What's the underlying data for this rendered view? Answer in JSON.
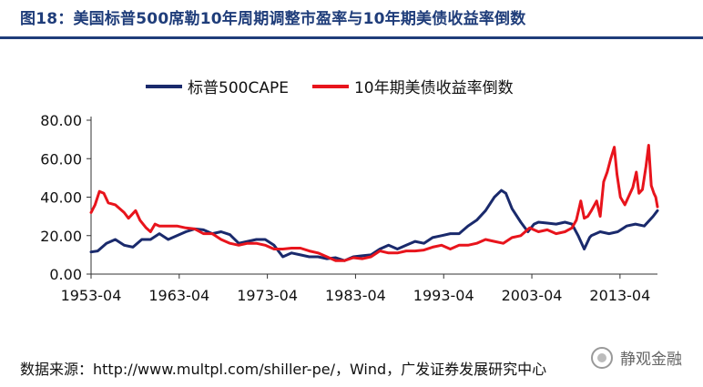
{
  "figure": {
    "title": "图18：美国标普500席勒10年周期调整市盈率与10年期美债收益率倒数",
    "source": "数据来源：http://www.multpl.com/shiller-pe/，Wind，广发证券发展研究中心",
    "watermark": "静观金融"
  },
  "colors": {
    "title": "#1f3d7a",
    "cape": "#1a2a6c",
    "inverse_yield": "#e8141c"
  },
  "chart_data": {
    "type": "line",
    "title": "",
    "xlabel": "",
    "ylabel": "",
    "xlim": [
      1953.25,
      2017.5
    ],
    "ylim": [
      0,
      80
    ],
    "y_ticks": [
      "0.00",
      "20.00",
      "40.00",
      "60.00",
      "80.00"
    ],
    "x_ticks": [
      "1953-04",
      "1963-04",
      "1973-04",
      "1983-04",
      "1993-04",
      "2003-04",
      "2013-04"
    ],
    "grid": false,
    "legend_position": "top",
    "series": [
      {
        "name": "标普500CAPE",
        "color": "#1a2a6c",
        "points": [
          [
            1953.25,
            11.5
          ],
          [
            1954,
            12
          ],
          [
            1955,
            16
          ],
          [
            1956,
            18
          ],
          [
            1957,
            15
          ],
          [
            1958,
            14
          ],
          [
            1959,
            18
          ],
          [
            1960,
            18
          ],
          [
            1961,
            21
          ],
          [
            1962,
            18
          ],
          [
            1963,
            20
          ],
          [
            1964,
            22
          ],
          [
            1965,
            23.5
          ],
          [
            1966,
            23
          ],
          [
            1967,
            21
          ],
          [
            1968,
            22
          ],
          [
            1969,
            20.5
          ],
          [
            1970,
            16
          ],
          [
            1971,
            17
          ],
          [
            1972,
            18
          ],
          [
            1973,
            18
          ],
          [
            1974,
            15
          ],
          [
            1975,
            9
          ],
          [
            1976,
            11
          ],
          [
            1977,
            10
          ],
          [
            1978,
            9
          ],
          [
            1979,
            9
          ],
          [
            1980,
            8
          ],
          [
            1981,
            8.5
          ],
          [
            1982,
            7
          ],
          [
            1983,
            9
          ],
          [
            1984,
            9.5
          ],
          [
            1985,
            10
          ],
          [
            1986,
            13
          ],
          [
            1987,
            15
          ],
          [
            1988,
            13
          ],
          [
            1989,
            15
          ],
          [
            1990,
            17
          ],
          [
            1991,
            16
          ],
          [
            1992,
            19
          ],
          [
            1993,
            20
          ],
          [
            1994,
            21
          ],
          [
            1995,
            21
          ],
          [
            1996,
            25
          ],
          [
            1997,
            28
          ],
          [
            1998,
            33
          ],
          [
            1999,
            40
          ],
          [
            1999.8,
            43.5
          ],
          [
            2000.3,
            42
          ],
          [
            2001,
            34
          ],
          [
            2002,
            27
          ],
          [
            2002.8,
            22
          ],
          [
            2003.5,
            26
          ],
          [
            2004,
            27
          ],
          [
            2005,
            26.5
          ],
          [
            2006,
            26
          ],
          [
            2007,
            27
          ],
          [
            2007.8,
            26
          ],
          [
            2008.5,
            20
          ],
          [
            2009.2,
            13
          ],
          [
            2009.8,
            19
          ],
          [
            2010,
            20
          ],
          [
            2011,
            22
          ],
          [
            2012,
            21
          ],
          [
            2013,
            22
          ],
          [
            2014,
            25
          ],
          [
            2015,
            26
          ],
          [
            2016,
            25
          ],
          [
            2017,
            30
          ],
          [
            2017.5,
            33
          ]
        ]
      },
      {
        "name": "10年期美债收益率倒数",
        "color": "#e8141c",
        "points": [
          [
            1953.25,
            32
          ],
          [
            1953.7,
            36
          ],
          [
            1954.2,
            43
          ],
          [
            1954.7,
            42
          ],
          [
            1955.2,
            37
          ],
          [
            1956,
            36
          ],
          [
            1957,
            32
          ],
          [
            1957.5,
            29
          ],
          [
            1958.3,
            33
          ],
          [
            1958.8,
            28
          ],
          [
            1959.5,
            24
          ],
          [
            1960,
            22
          ],
          [
            1960.5,
            26
          ],
          [
            1961,
            25
          ],
          [
            1962,
            25
          ],
          [
            1963,
            25
          ],
          [
            1964,
            24
          ],
          [
            1965,
            23.5
          ],
          [
            1966,
            21
          ],
          [
            1967,
            21
          ],
          [
            1968,
            18
          ],
          [
            1969,
            16
          ],
          [
            1970,
            15
          ],
          [
            1971,
            16
          ],
          [
            1972,
            16
          ],
          [
            1973,
            15
          ],
          [
            1974,
            13
          ],
          [
            1975,
            13
          ],
          [
            1976,
            13.5
          ],
          [
            1977,
            13.5
          ],
          [
            1978,
            12
          ],
          [
            1979,
            11
          ],
          [
            1980,
            9
          ],
          [
            1981,
            7
          ],
          [
            1982,
            7
          ],
          [
            1983,
            8.5
          ],
          [
            1984,
            8
          ],
          [
            1985,
            9
          ],
          [
            1986,
            12
          ],
          [
            1987,
            11
          ],
          [
            1988,
            11
          ],
          [
            1989,
            12
          ],
          [
            1990,
            12
          ],
          [
            1991,
            12.5
          ],
          [
            1992,
            14
          ],
          [
            1993,
            15
          ],
          [
            1994,
            13
          ],
          [
            1995,
            15
          ],
          [
            1996,
            15
          ],
          [
            1997,
            16
          ],
          [
            1998,
            18
          ],
          [
            1999,
            17
          ],
          [
            2000,
            16
          ],
          [
            2001,
            19
          ],
          [
            2002,
            20
          ],
          [
            2003,
            24
          ],
          [
            2004,
            22
          ],
          [
            2005,
            23
          ],
          [
            2006,
            21
          ],
          [
            2007,
            22
          ],
          [
            2007.8,
            24
          ],
          [
            2008.3,
            28
          ],
          [
            2008.8,
            38
          ],
          [
            2009.2,
            29
          ],
          [
            2009.6,
            30
          ],
          [
            2010,
            33
          ],
          [
            2010.6,
            38
          ],
          [
            2011,
            30
          ],
          [
            2011.4,
            48
          ],
          [
            2011.8,
            53
          ],
          [
            2012.2,
            60
          ],
          [
            2012.6,
            66
          ],
          [
            2012.9,
            52
          ],
          [
            2013.3,
            40
          ],
          [
            2013.8,
            36
          ],
          [
            2014.3,
            41
          ],
          [
            2014.7,
            45
          ],
          [
            2015.1,
            53
          ],
          [
            2015.4,
            42
          ],
          [
            2015.8,
            44
          ],
          [
            2016.2,
            56
          ],
          [
            2016.5,
            67
          ],
          [
            2016.8,
            46
          ],
          [
            2017.1,
            42
          ],
          [
            2017.3,
            40
          ],
          [
            2017.5,
            35
          ]
        ]
      }
    ]
  }
}
